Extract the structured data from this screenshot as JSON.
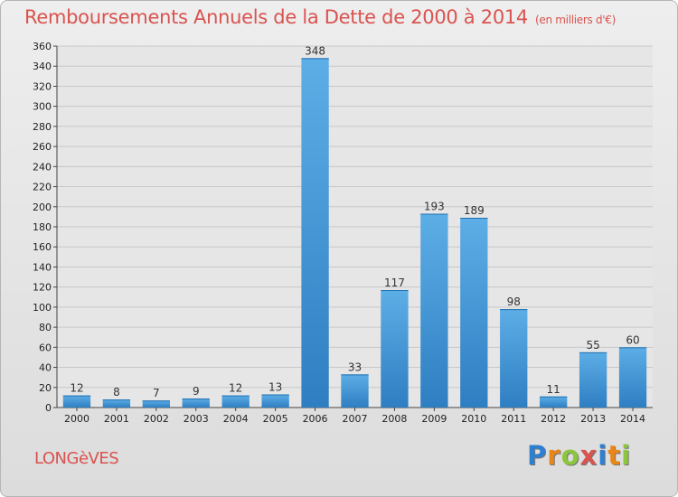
{
  "header": {
    "title": "Remboursements Annuels de la Dette de 2000 à 2014",
    "subtitle": "(en milliers d'€)"
  },
  "footer": {
    "commune": "LONGèVES",
    "logo_letters": [
      "P",
      "r",
      "o",
      "x",
      "i",
      "t",
      "i"
    ],
    "logo_colors": [
      "#2f7fd1",
      "#e8861a",
      "#8cc63e",
      "#d9534f",
      "#2f7fd1",
      "#e8861a",
      "#8cc63e"
    ]
  },
  "colors": {
    "bar_top": "#5daee6",
    "bar_bottom": "#2e7ec2",
    "title": "#d9534f"
  },
  "chart_data": {
    "type": "bar",
    "title": "Remboursements Annuels de la Dette de 2000 à 2014",
    "categories": [
      "2000",
      "2001",
      "2002",
      "2003",
      "2004",
      "2005",
      "2006",
      "2007",
      "2008",
      "2009",
      "2010",
      "2011",
      "2012",
      "2013",
      "2014"
    ],
    "values": [
      12,
      8,
      7,
      9,
      12,
      13,
      348,
      33,
      117,
      193,
      189,
      98,
      11,
      55,
      60
    ],
    "data_labels": [
      "12",
      "8",
      "7",
      "9",
      "12",
      "13",
      "348",
      "33",
      "117",
      "193",
      "189",
      "98",
      "11",
      "55",
      "60"
    ],
    "ylim": [
      0,
      360
    ],
    "yticks": [
      0,
      20,
      40,
      60,
      80,
      100,
      120,
      140,
      160,
      180,
      200,
      220,
      240,
      260,
      280,
      300,
      320,
      340,
      360
    ],
    "ytick_labels": [
      "0",
      "20",
      "40",
      "60",
      "80",
      "100",
      "120",
      "140",
      "160",
      "180",
      "200",
      "220",
      "240",
      "260",
      "280",
      "300",
      "320",
      "340",
      "360"
    ],
    "xlabel": "",
    "ylabel": "",
    "grid": true
  }
}
